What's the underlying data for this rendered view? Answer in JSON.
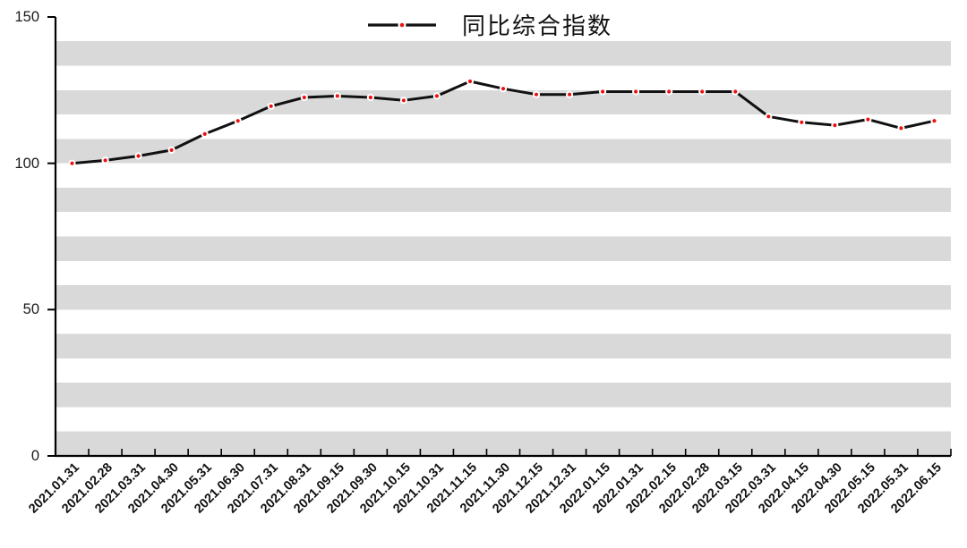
{
  "legend": {
    "label": "同比综合指数"
  },
  "colors": {
    "line": "#111111",
    "marker": "#ee1111",
    "marker_ring": "#ffffff",
    "band_gray": "#d9d9d9",
    "band_white": "#ffffff",
    "axis": "#000000",
    "text": "#1a1a1a"
  },
  "chart_data": {
    "type": "line",
    "title": "",
    "legend_entries": [
      "同比综合指数"
    ],
    "legend_position": "top-center",
    "grid": "alternating horizontal gray/white bands (18 bands, gray at bottom)",
    "xlabel": "",
    "ylabel": "",
    "ylim": [
      0,
      150
    ],
    "yticks": [
      "0",
      "50",
      "100",
      "150"
    ],
    "x": [
      "2021.01.31",
      "2021.02.28",
      "2021.03.31",
      "2021.04.30",
      "2021.05.31",
      "2021.06.30",
      "2021.07.31",
      "2021.08.31",
      "2021.09.15",
      "2021.09.30",
      "2021.10.15",
      "2021.10.31",
      "2021.11.15",
      "2021.11.30",
      "2021.12.15",
      "2021.12.31",
      "2022.01.15",
      "2022.01.31",
      "2022.02.15",
      "2022.02.28",
      "2022.03.15",
      "2022.03.31",
      "2022.04.15",
      "2022.04.30",
      "2022.05.15",
      "2022.05.31",
      "2022.06.15"
    ],
    "series": [
      {
        "name": "同比综合指数",
        "values": [
          100,
          101,
          102.5,
          104.5,
          110,
          114.5,
          119.5,
          122.5,
          123,
          122.5,
          121.5,
          123,
          128,
          125.5,
          123.5,
          123.5,
          124.5,
          124.5,
          124.5,
          124.5,
          124.5,
          116,
          114,
          113,
          115,
          112,
          114.5
        ]
      }
    ]
  }
}
